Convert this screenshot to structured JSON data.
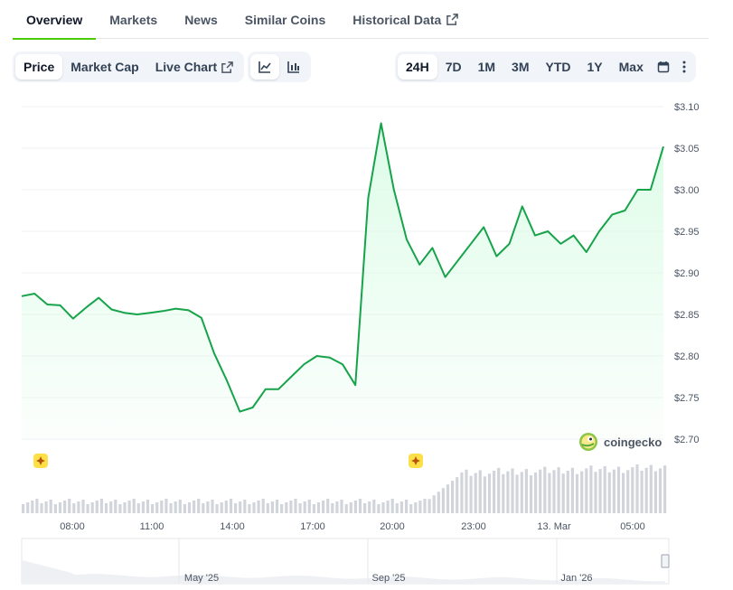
{
  "tabs": [
    {
      "label": "Overview",
      "active": true
    },
    {
      "label": "Markets"
    },
    {
      "label": "News"
    },
    {
      "label": "Similar Coins"
    },
    {
      "label": "Historical Data",
      "external_icon": "external-link-icon"
    }
  ],
  "toolbar": {
    "metric_options": [
      {
        "label": "Price",
        "active": true
      },
      {
        "label": "Market Cap"
      },
      {
        "label": "Live Chart",
        "external_icon": "external-link-icon"
      }
    ],
    "chart_type_icons": [
      "line-chart-icon",
      "candlestick-chart-icon"
    ],
    "ranges": [
      {
        "label": "24H",
        "active": true
      },
      {
        "label": "7D"
      },
      {
        "label": "1M"
      },
      {
        "label": "3M"
      },
      {
        "label": "YTD"
      },
      {
        "label": "1Y"
      },
      {
        "label": "Max"
      }
    ],
    "extra_icons": [
      "calendar-icon",
      "more-vertical-icon"
    ]
  },
  "brand": {
    "name": "coingecko",
    "icon": "gecko-logo-icon"
  },
  "colors": {
    "accent": "#4bcc00",
    "line": "#16a34a",
    "area": "#dcfce7",
    "volume": "#d1d5db",
    "marker": "#fde047"
  },
  "chart_data": {
    "type": "area",
    "series": [
      {
        "x": [
          "06:00",
          "06:30",
          "07:00",
          "07:30",
          "08:00",
          "08:30",
          "09:00",
          "09:30",
          "10:00",
          "10:30",
          "11:00",
          "11:30",
          "12:00",
          "12:30",
          "13:00",
          "13:30",
          "14:00",
          "14:30",
          "15:00",
          "15:30",
          "16:00",
          "16:30",
          "17:00",
          "17:30",
          "18:00",
          "18:30",
          "19:00",
          "19:30",
          "20:00",
          "20:30",
          "21:00",
          "21:15",
          "21:30",
          "21:45",
          "22:00",
          "22:30",
          "23:00",
          "23:30",
          "00:00",
          "00:30",
          "01:00",
          "01:30",
          "02:00",
          "02:30",
          "03:00",
          "03:30",
          "04:00",
          "04:30",
          "05:00",
          "05:30",
          "06:00"
        ],
        "values": [
          2.872,
          2.875,
          2.862,
          2.861,
          2.845,
          2.858,
          2.87,
          2.856,
          2.852,
          2.85,
          2.852,
          2.854,
          2.857,
          2.855,
          2.846,
          2.803,
          2.77,
          2.733,
          2.738,
          2.76,
          2.76,
          2.775,
          2.79,
          2.8,
          2.798,
          2.79,
          2.765,
          2.99,
          3.08,
          3.0,
          2.94,
          2.91,
          2.93,
          2.895,
          2.915,
          2.935,
          2.955,
          2.92,
          2.935,
          2.98,
          2.945,
          2.95,
          2.935,
          2.945,
          2.925,
          2.95,
          2.97,
          2.975,
          3.0,
          3.0,
          3.052
        ]
      }
    ],
    "y_ticks": [
      "$3.10",
      "$3.05",
      "$3.00",
      "$2.95",
      "$2.90",
      "$2.85",
      "$2.80",
      "$2.75",
      "$2.70"
    ],
    "x_ticks": [
      "08:00",
      "11:00",
      "14:00",
      "17:00",
      "20:00",
      "23:00",
      "13. Mar",
      "05:00"
    ],
    "ylim": [
      2.7,
      3.1
    ],
    "grid": true,
    "event_markers": [
      "06:45",
      "21:45"
    ],
    "navigator": {
      "labels": [
        "May '25",
        "Sep '25",
        "Jan '26"
      ]
    }
  }
}
